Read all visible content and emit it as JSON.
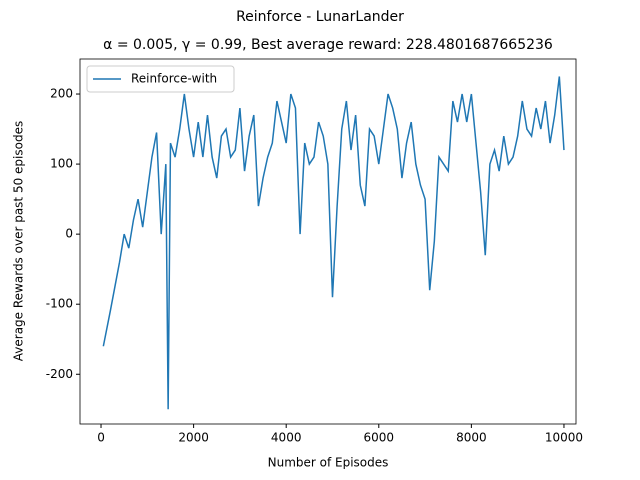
{
  "chart_data": {
    "type": "line",
    "suptitle": "Reinforce - LunarLander",
    "title": "α = 0.005, γ = 0.99,  Best average reward: 228.4801687665236",
    "x_label": "Number of Episodes",
    "y_label": "Average Rewards over past 50 episodes",
    "x": [
      50,
      200,
      300,
      400,
      500,
      600,
      700,
      800,
      900,
      1000,
      1100,
      1200,
      1300,
      1400,
      1450,
      1500,
      1600,
      1700,
      1800,
      1900,
      2000,
      2100,
      2200,
      2300,
      2400,
      2500,
      2600,
      2700,
      2800,
      2900,
      3000,
      3100,
      3200,
      3300,
      3400,
      3500,
      3600,
      3700,
      3800,
      3900,
      4000,
      4100,
      4200,
      4300,
      4400,
      4500,
      4600,
      4700,
      4800,
      4900,
      5000,
      5100,
      5200,
      5300,
      5400,
      5500,
      5600,
      5700,
      5800,
      5900,
      6000,
      6100,
      6200,
      6300,
      6400,
      6500,
      6600,
      6700,
      6800,
      6900,
      7000,
      7100,
      7200,
      7300,
      7400,
      7500,
      7600,
      7700,
      7800,
      7900,
      8000,
      8100,
      8200,
      8300,
      8400,
      8500,
      8600,
      8700,
      8800,
      8900,
      9000,
      9100,
      9200,
      9300,
      9400,
      9500,
      9600,
      9700,
      9800,
      9900,
      10000
    ],
    "series": [
      {
        "name": "Reinforce-with",
        "color": "#1f77b4",
        "values": [
          -160,
          -110,
          -75,
          -40,
          0,
          -20,
          20,
          50,
          10,
          60,
          110,
          145,
          0,
          100,
          -250,
          130,
          110,
          150,
          200,
          150,
          110,
          160,
          110,
          170,
          110,
          80,
          140,
          150,
          110,
          120,
          180,
          90,
          140,
          170,
          40,
          80,
          110,
          130,
          190,
          160,
          130,
          200,
          180,
          0,
          130,
          100,
          110,
          160,
          140,
          100,
          -90,
          40,
          150,
          190,
          120,
          170,
          70,
          40,
          150,
          140,
          100,
          150,
          200,
          180,
          150,
          80,
          130,
          160,
          100,
          70,
          50,
          -80,
          -10,
          110,
          100,
          90,
          190,
          160,
          200,
          160,
          200,
          130,
          60,
          -30,
          100,
          120,
          90,
          140,
          100,
          110,
          140,
          190,
          150,
          140,
          180,
          150,
          190,
          130,
          170,
          225,
          120
        ]
      }
    ],
    "xlim": [
      -454,
      10260
    ],
    "ylim": [
      -271,
      250
    ],
    "xticks": [
      0,
      2000,
      4000,
      6000,
      8000,
      10000
    ],
    "yticks": [
      -200,
      -100,
      0,
      100,
      200
    ],
    "legend": "upper left"
  }
}
